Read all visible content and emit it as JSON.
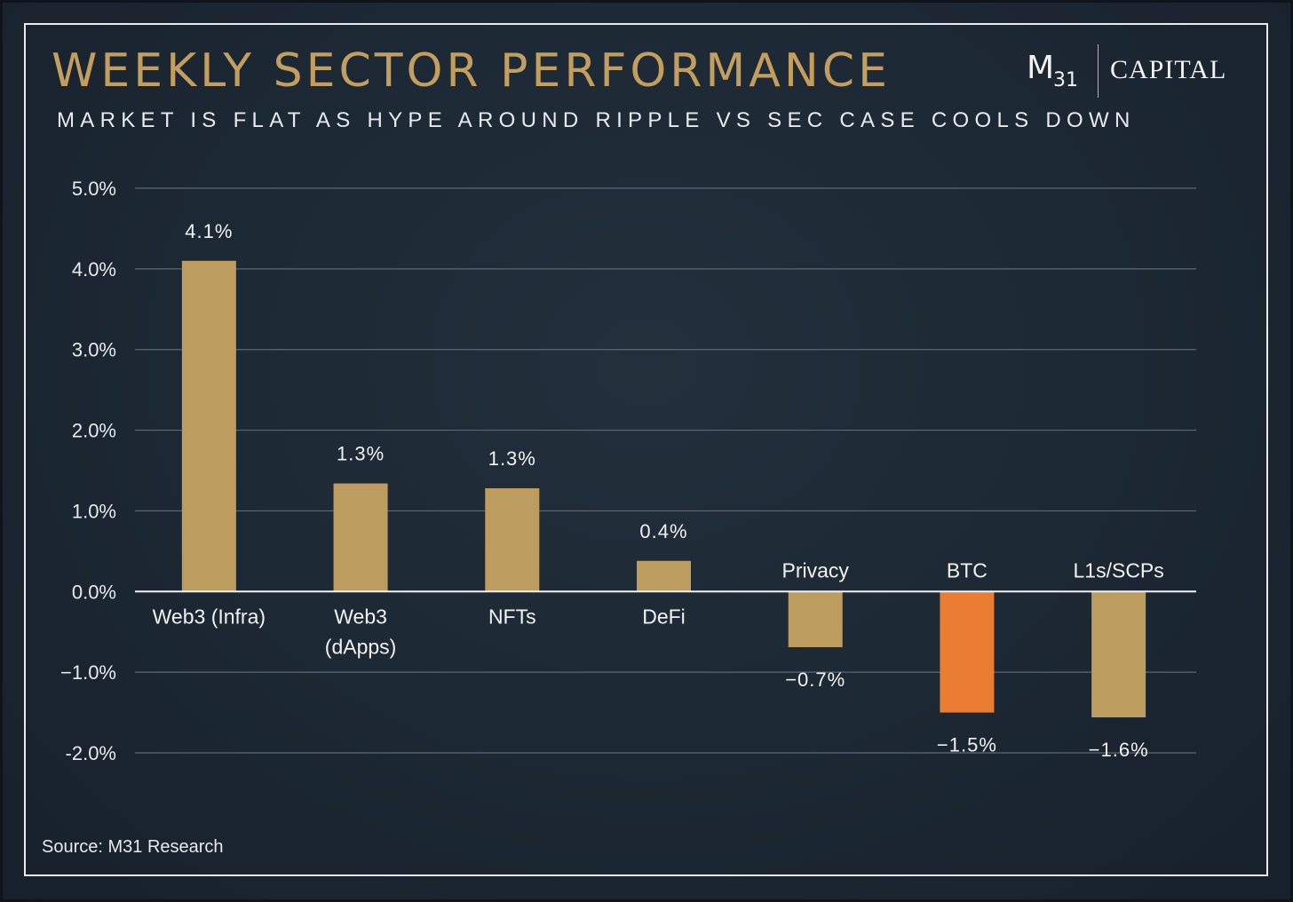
{
  "header": {
    "title": "WEEKLY SECTOR PERFORMANCE",
    "subtitle": "MARKET IS FLAT AS HYPE AROUND RIPPLE VS SEC CASE COOLS DOWN"
  },
  "logo": {
    "letter": "M",
    "subscript": "31",
    "word": "CAPITAL"
  },
  "footer": {
    "source": "Source: M31 Research"
  },
  "colors": {
    "title": "#c39e5f",
    "bar_default": "#bd9c60",
    "bar_highlight": "#ea7d32",
    "gridline": "#5d6873",
    "zero_line": "#f2f2f2",
    "background": "#1c2733"
  },
  "chart_data": {
    "type": "bar",
    "title": "WEEKLY SECTOR PERFORMANCE",
    "subtitle": "MARKET IS FLAT AS HYPE AROUND RIPPLE VS SEC CASE COOLS DOWN",
    "xlabel": "",
    "ylabel": "",
    "ylim": [
      -2.0,
      5.0
    ],
    "yticks": [
      5.0,
      4.0,
      3.0,
      2.0,
      1.0,
      0.0,
      -1.0,
      -2.0
    ],
    "ytick_labels": [
      "5.0%",
      "4.0%",
      "3.0%",
      "2.0%",
      "1.0%",
      "0.0%",
      "−1.0%",
      "-2.0%"
    ],
    "grid": true,
    "legend": "none",
    "categories": [
      [
        "Web3 (Infra)"
      ],
      [
        "Web3",
        "(dApps)"
      ],
      [
        "NFTs"
      ],
      [
        "DeFi"
      ],
      [
        "Privacy"
      ],
      [
        "BTC"
      ],
      [
        "L1s/SCPs"
      ]
    ],
    "values": [
      4.1,
      1.34,
      1.28,
      0.38,
      -0.69,
      -1.5,
      -1.56
    ],
    "value_labels": [
      "4.1%",
      "1.3%",
      "1.3%",
      "0.4%",
      "−0.7%",
      "−1.5%",
      "−1.6%"
    ],
    "highlight_index": 5
  }
}
